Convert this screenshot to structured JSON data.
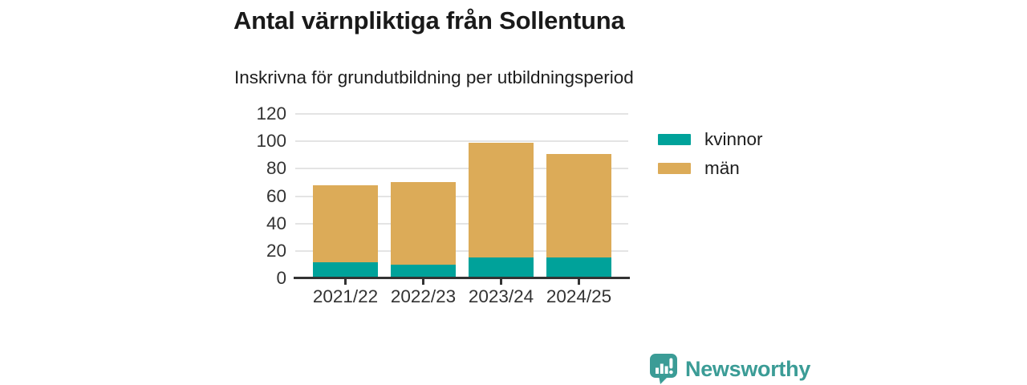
{
  "header": {
    "title": "Antal värnpliktiga från Sollentuna",
    "subtitle": "Inskrivna för grundutbildning per utbildningsperiod"
  },
  "chart_data": {
    "type": "bar",
    "stacked": true,
    "title": "Antal värnpliktiga från Sollentuna",
    "subtitle": "Inskrivna för grundutbildning per utbildningsperiod",
    "categories": [
      "2021/22",
      "2022/23",
      "2023/24",
      "2024/25"
    ],
    "series": [
      {
        "name": "kvinnor",
        "color": "#00a29a",
        "values": [
          12,
          10,
          15,
          15
        ]
      },
      {
        "name": "män",
        "color": "#dcab58",
        "values": [
          56,
          60,
          84,
          76
        ]
      }
    ],
    "totals": [
      68,
      70,
      99,
      91
    ],
    "xlabel": "",
    "ylabel": "",
    "ylim": [
      0,
      120
    ],
    "yticks": [
      0,
      20,
      40,
      60,
      80,
      100,
      120
    ],
    "grid": true,
    "legend_position": "right"
  },
  "colors": {
    "gridline": "#e4e4e4",
    "axis_line": "#333333",
    "axis_text": "#333333",
    "title_text": "#1a1a1a"
  },
  "branding": {
    "logo_text": "Newsworthy",
    "logo_color": "#3b9c96",
    "logo_icon": "bar-chart-speech-bubble-icon"
  }
}
